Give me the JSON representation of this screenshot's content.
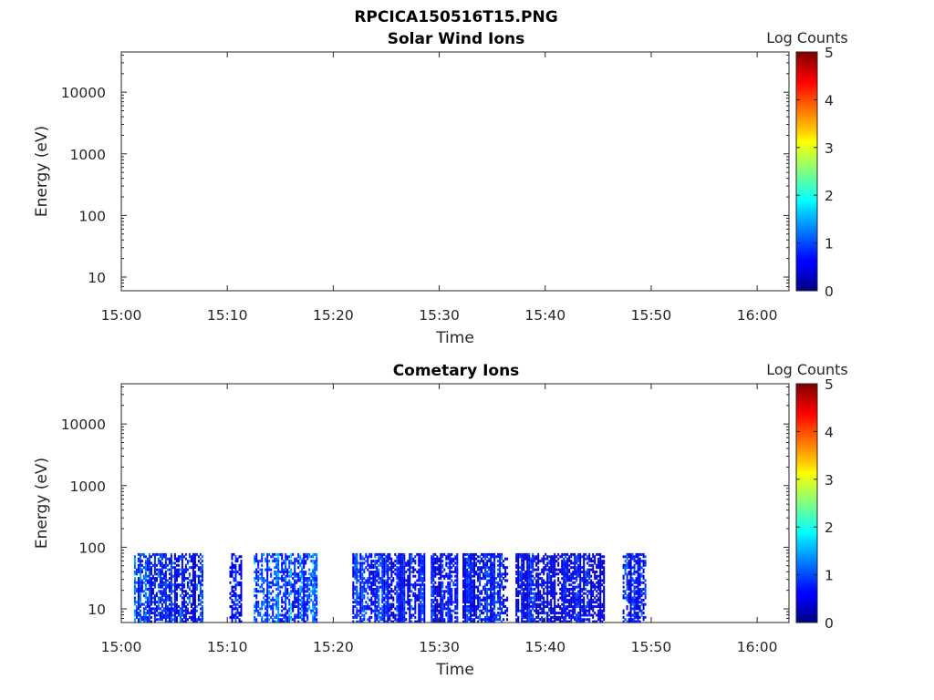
{
  "figure_title": "RPCICA150516T15.PNG",
  "chart_data": [
    {
      "type": "heatmap",
      "title": "Solar Wind Ions",
      "xlabel": "Time",
      "ylabel": "Energy (eV)",
      "x_ticks": [
        "15:00",
        "15:10",
        "15:20",
        "15:30",
        "15:40",
        "15:50",
        "16:00"
      ],
      "xlim_minutes": [
        0,
        63
      ],
      "y_ticks": [
        "10",
        "100",
        "1000",
        "10000"
      ],
      "y_tick_values": [
        10,
        100,
        1000,
        10000
      ],
      "y_scale": "log",
      "ylim": [
        6,
        45000
      ],
      "colorbar": {
        "label": "Log Counts",
        "ticks": [
          "0",
          "1",
          "2",
          "3",
          "4",
          "5"
        ],
        "range": [
          0,
          5
        ],
        "colormap": "jet"
      },
      "data_note": "empty",
      "segments": []
    },
    {
      "type": "heatmap",
      "title": "Cometary Ions",
      "xlabel": "Time",
      "ylabel": "Energy (eV)",
      "x_ticks": [
        "15:00",
        "15:10",
        "15:20",
        "15:30",
        "15:40",
        "15:50",
        "16:00"
      ],
      "xlim_minutes": [
        0,
        63
      ],
      "y_ticks": [
        "10",
        "100",
        "1000",
        "10000"
      ],
      "y_tick_values": [
        10,
        100,
        1000,
        10000
      ],
      "y_scale": "log",
      "ylim": [
        6,
        45000
      ],
      "colorbar": {
        "label": "Log Counts",
        "ticks": [
          "0",
          "1",
          "2",
          "3",
          "4",
          "5"
        ],
        "range": [
          0,
          5
        ],
        "colormap": "jet"
      },
      "energy_band_eV": [
        6,
        80
      ],
      "segments": [
        {
          "t_start": 1.2,
          "t_end": 7.7,
          "max_log_counts": 1.6
        },
        {
          "t_start": 10.2,
          "t_end": 11.4,
          "max_log_counts": 1.4
        },
        {
          "t_start": 12.5,
          "t_end": 18.5,
          "max_log_counts": 1.8
        },
        {
          "t_start": 21.8,
          "t_end": 28.6,
          "max_log_counts": 1.5
        },
        {
          "t_start": 29.2,
          "t_end": 31.7,
          "max_log_counts": 1.3
        },
        {
          "t_start": 32.2,
          "t_end": 36.4,
          "max_log_counts": 1.4
        },
        {
          "t_start": 37.2,
          "t_end": 45.5,
          "max_log_counts": 1.2
        },
        {
          "t_start": 47.3,
          "t_end": 49.5,
          "max_log_counts": 1.5
        }
      ]
    }
  ]
}
